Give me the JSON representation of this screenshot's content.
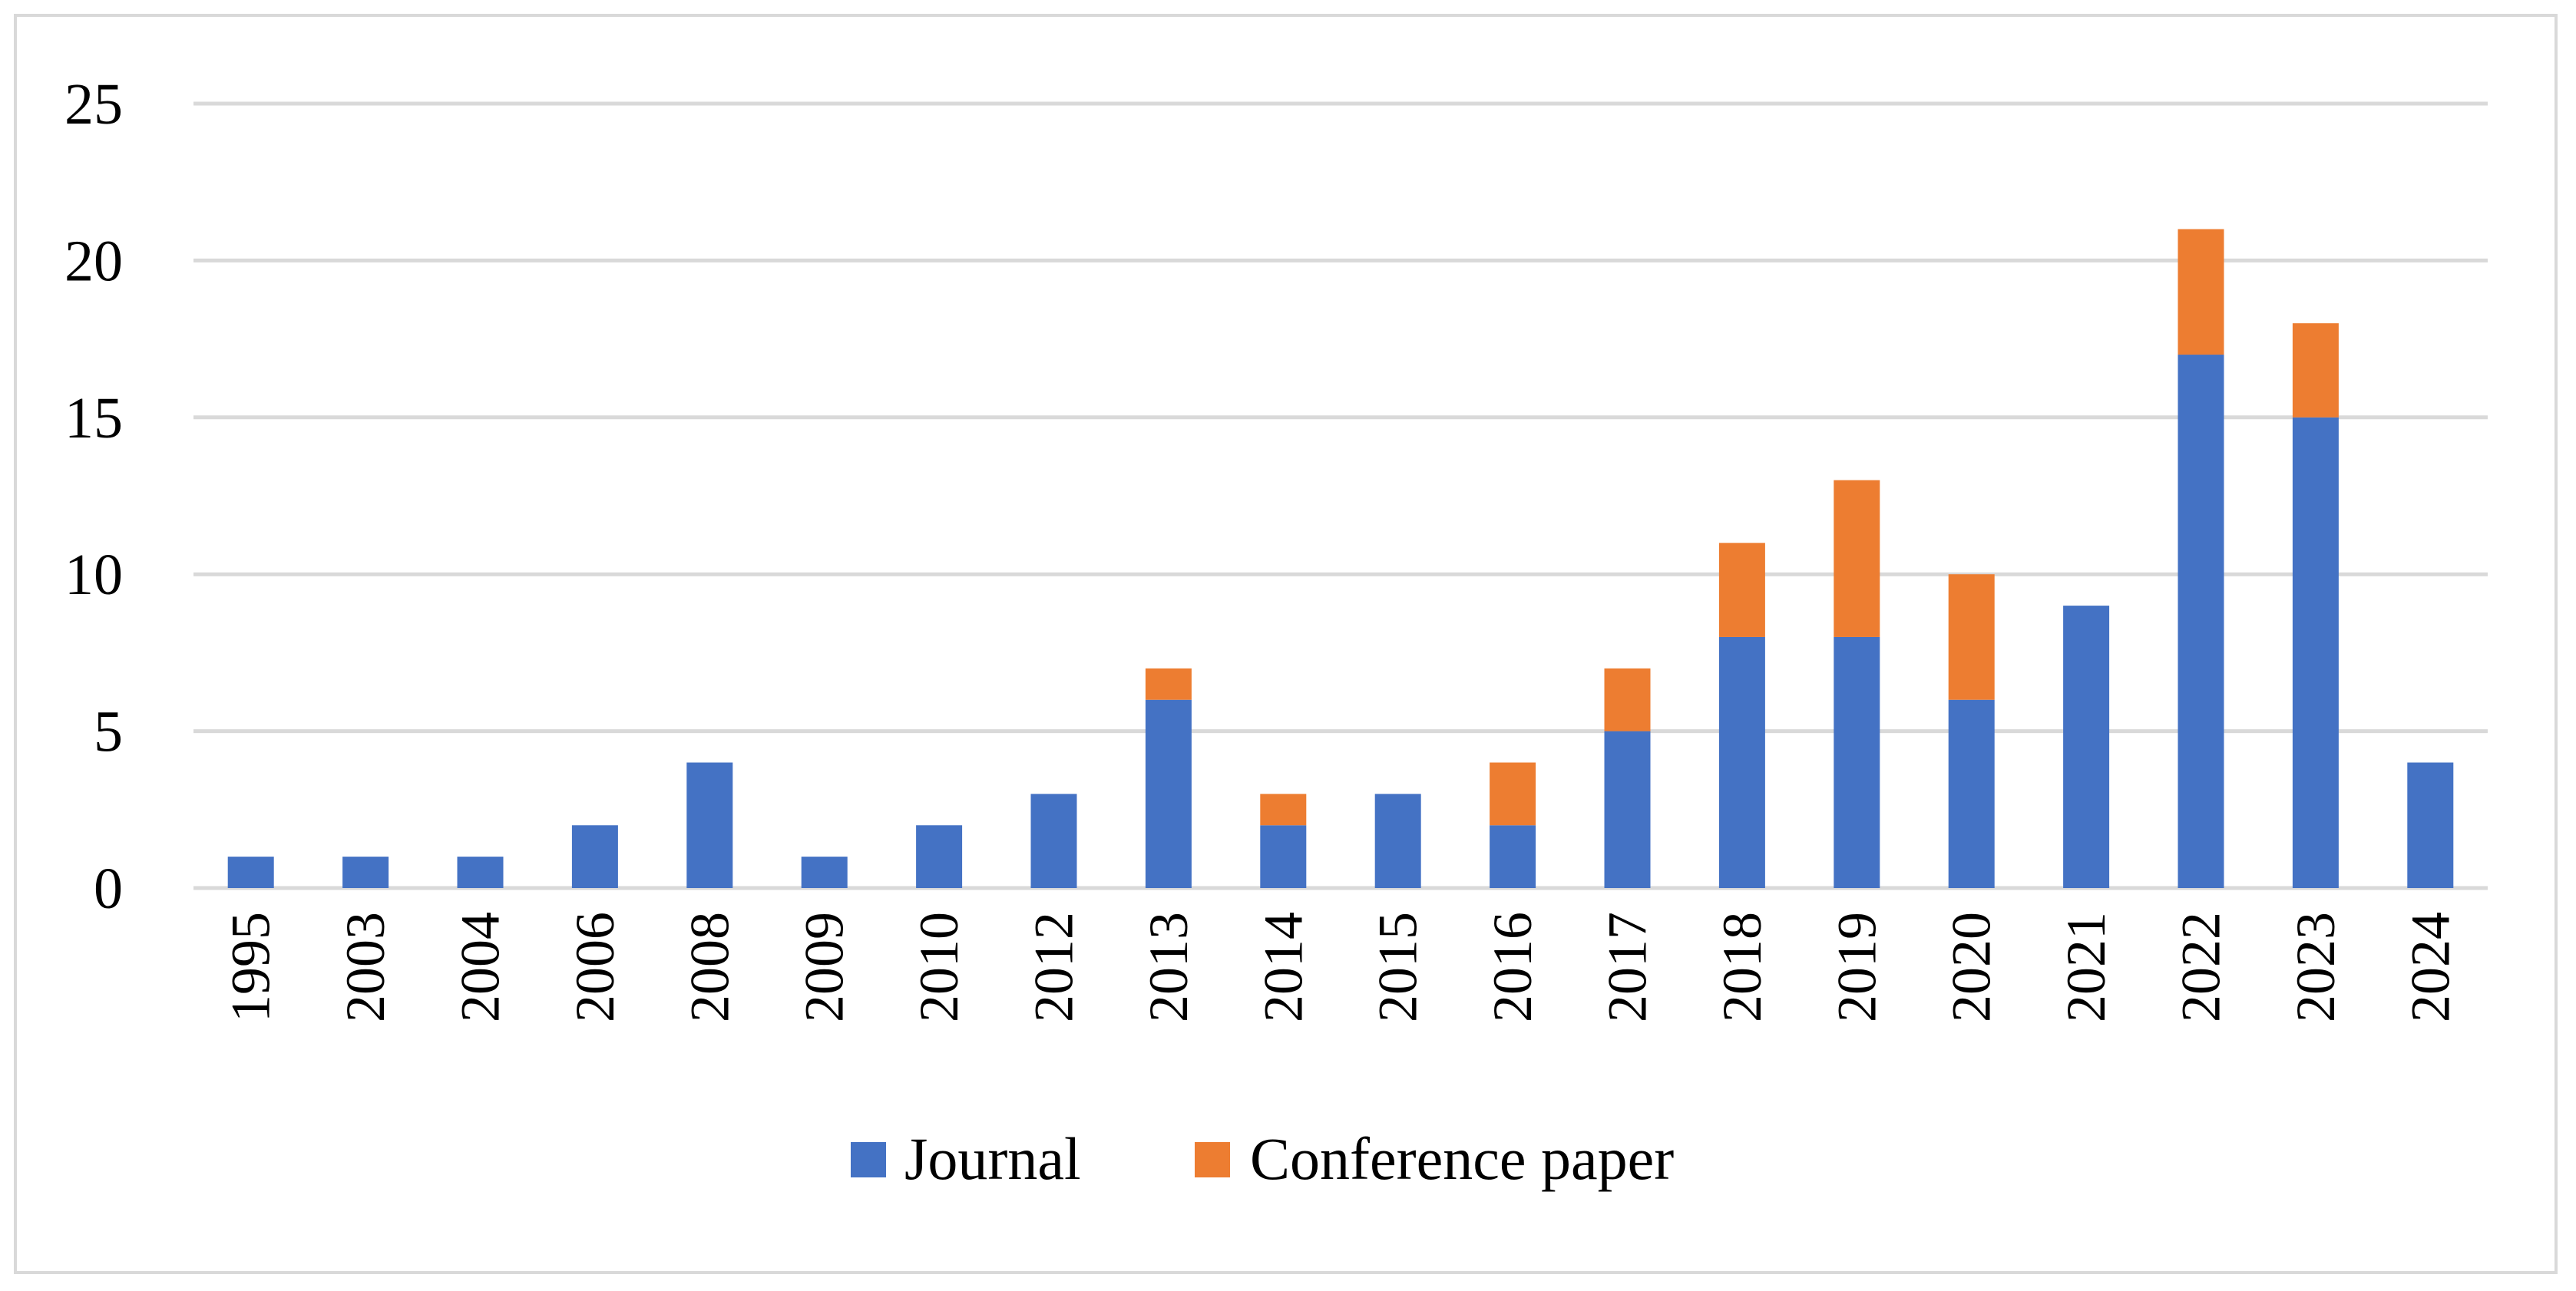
{
  "chart_data": {
    "type": "bar",
    "stacked": true,
    "title": "",
    "xlabel": "",
    "ylabel": "",
    "ylim": [
      0,
      25
    ],
    "yticks": [
      "0",
      "5",
      "10",
      "15",
      "20",
      "25"
    ],
    "grid": true,
    "legend_position": "bottom",
    "categories": [
      "1995",
      "2003",
      "2004",
      "2006",
      "2008",
      "2009",
      "2010",
      "2012",
      "2013",
      "2014",
      "2015",
      "2016",
      "2017",
      "2018",
      "2019",
      "2020",
      "2021",
      "2022",
      "2023",
      "2024"
    ],
    "series": [
      {
        "name": "Journal",
        "color": "#4472c4",
        "values": [
          1,
          1,
          1,
          2,
          4,
          1,
          2,
          3,
          6,
          2,
          3,
          2,
          5,
          8,
          8,
          6,
          9,
          17,
          15,
          4
        ]
      },
      {
        "name": "Conference paper",
        "color": "#ed7d31",
        "values": [
          0,
          0,
          0,
          0,
          0,
          0,
          0,
          0,
          1,
          1,
          0,
          2,
          2,
          3,
          5,
          4,
          0,
          4,
          3,
          0
        ]
      }
    ],
    "gridline_color": "#d9d9d9"
  }
}
